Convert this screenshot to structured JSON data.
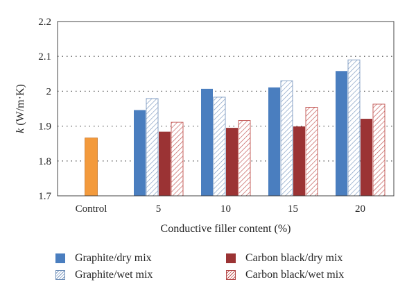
{
  "chart_data": {
    "type": "bar",
    "xlabel": "Conductive filler content (%)",
    "ylabel_italic": "k",
    "ylabel_unit": " (W/m·K)",
    "ylim": [
      1.7,
      2.2
    ],
    "yticks": [
      "1.7",
      "1.8",
      "1.9",
      "2",
      "2.1",
      "2.2"
    ],
    "grid": "horizontal dotted",
    "legend_position": "bottom",
    "categories": [
      "Control",
      "5",
      "10",
      "15",
      "20"
    ],
    "control": {
      "name": "Control",
      "value": 1.866,
      "color": "#f39a3c"
    },
    "series": [
      {
        "name": "Graphite/dry mix",
        "values": [
          null,
          1.946,
          2.007,
          2.011,
          2.058
        ],
        "color": "#4a7ebf",
        "pattern": "solid"
      },
      {
        "name": "Graphite/wet mix",
        "values": [
          null,
          1.979,
          1.983,
          2.03,
          2.09
        ],
        "color": "#7a98c0",
        "pattern": "hatch"
      },
      {
        "name": "Carbon black/dry mix",
        "values": [
          null,
          1.884,
          1.895,
          1.899,
          1.921
        ],
        "color": "#9b3334",
        "pattern": "solid"
      },
      {
        "name": "Carbon black/wet mix",
        "values": [
          null,
          1.911,
          1.916,
          1.954,
          1.963
        ],
        "color": "#c0504d",
        "pattern": "hatch"
      }
    ]
  },
  "legend": [
    {
      "label": "Graphite/dry mix",
      "swatch": "gd"
    },
    {
      "label": "Carbon black/dry mix",
      "swatch": "cd"
    },
    {
      "label": "Graphite/wet mix",
      "swatch": "gw"
    },
    {
      "label": "Carbon black/wet mix",
      "swatch": "cw"
    }
  ]
}
